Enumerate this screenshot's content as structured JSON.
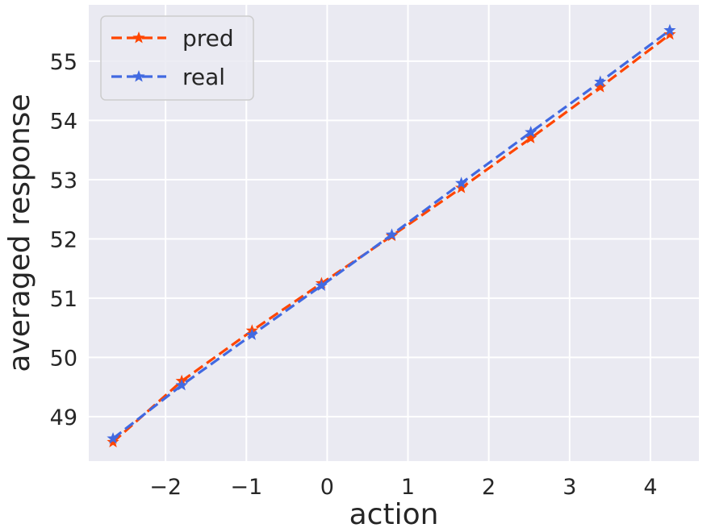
{
  "chart_data": {
    "type": "line",
    "xlabel": "action",
    "ylabel": "averaged response",
    "xlim": [
      -2.95,
      4.6
    ],
    "ylim": [
      48.25,
      55.95
    ],
    "xticks": [
      -2,
      -1,
      0,
      1,
      2,
      3,
      4
    ],
    "xtick_labels": [
      "−2",
      "−1",
      "0",
      "1",
      "2",
      "3",
      "4"
    ],
    "yticks": [
      49,
      50,
      51,
      52,
      53,
      54,
      55
    ],
    "ytick_labels": [
      "49",
      "50",
      "51",
      "52",
      "53",
      "54",
      "55"
    ],
    "grid": true,
    "legend_position": "top-left",
    "background_color": "#eaeaf2",
    "grid_color": "#ffffff",
    "series": [
      {
        "name": "pred",
        "color": "#ff4500",
        "marker": "star",
        "linestyle": "dashed",
        "x": [
          -2.65,
          -1.8,
          -0.93,
          -0.07,
          0.8,
          1.66,
          2.52,
          3.38,
          4.24
        ],
        "y": [
          48.57,
          49.6,
          50.45,
          51.25,
          52.05,
          52.86,
          53.7,
          54.56,
          55.45
        ]
      },
      {
        "name": "real",
        "color": "#4169e1",
        "marker": "star",
        "linestyle": "dashed",
        "x": [
          -2.65,
          -1.8,
          -0.93,
          -0.07,
          0.8,
          1.66,
          2.52,
          3.38,
          4.24
        ],
        "y": [
          48.63,
          49.53,
          50.38,
          51.21,
          52.07,
          52.94,
          53.8,
          54.65,
          55.52
        ]
      }
    ]
  }
}
